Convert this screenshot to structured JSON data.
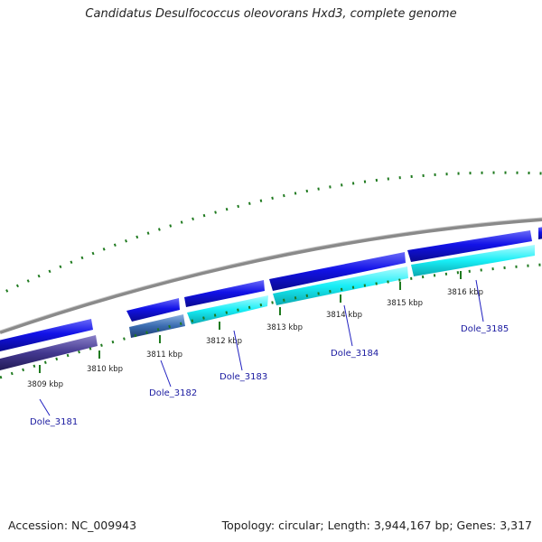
{
  "map": {
    "title": "Candidatus Desulfococcus oleovorans Hxd3, complete genome",
    "accession": "Accession: NC_009943",
    "summary": "Topology: circular; Length: 3,944,167 bp; Genes: 3,317"
  },
  "kbp_labels": [
    "3809 kbp",
    "3810 kbp",
    "3811 kbp",
    "3812 kbp",
    "3813 kbp",
    "3814 kbp",
    "3815 kbp",
    "3816 kbp"
  ],
  "gene_labels": [
    "Dole_3181",
    "Dole_3182",
    "Dole_3183",
    "Dole_3184",
    "Dole_3185"
  ],
  "colors": {
    "backbone": "#8a8a8a",
    "forward_gene": "#1010e0",
    "reverse_gene": "#10e8f0",
    "reverse_gene_alt": "#3060a8",
    "reverse_gene_dark": "#302870",
    "tick": "#1f7a1f",
    "label_line": "#2020c0"
  }
}
